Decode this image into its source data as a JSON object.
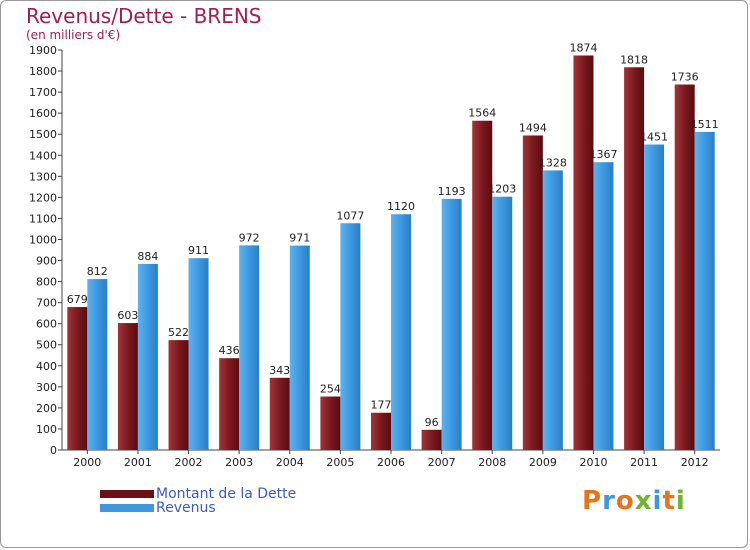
{
  "title": "Revenus/Dette - BRENS",
  "subtitle": "(en milliers d'€)",
  "logo": {
    "letters": [
      "P",
      "r",
      "o",
      "x",
      "i",
      "t",
      "i"
    ]
  },
  "colors": {
    "dette": "#6b1116",
    "revenus": "#3d98e0",
    "title": "#a21d55",
    "legend_text": "#3b5bc8"
  },
  "legend": [
    {
      "label": "Montant de la Dette",
      "color": "#6b1116"
    },
    {
      "label": "Revenus",
      "color": "#3d98e0"
    }
  ],
  "chart_data": {
    "type": "bar",
    "categories": [
      "2000",
      "2001",
      "2002",
      "2003",
      "2004",
      "2005",
      "2006",
      "2007",
      "2008",
      "2009",
      "2010",
      "2011",
      "2012"
    ],
    "series": [
      {
        "name": "Montant de la Dette",
        "values": [
          679,
          603,
          522,
          436,
          343,
          254,
          177,
          96,
          1564,
          1494,
          1874,
          1818,
          1736
        ]
      },
      {
        "name": "Revenus",
        "values": [
          812,
          884,
          911,
          972,
          971,
          1077,
          1120,
          1193,
          1203,
          1328,
          1367,
          1451,
          1511
        ]
      }
    ],
    "ylim": [
      0,
      1900
    ],
    "yticks": [
      0,
      100,
      200,
      300,
      400,
      500,
      600,
      700,
      800,
      900,
      1000,
      1100,
      1200,
      1300,
      1400,
      1500,
      1600,
      1700,
      1800,
      1900
    ],
    "grid": false,
    "legend_position": "bottom-left"
  }
}
